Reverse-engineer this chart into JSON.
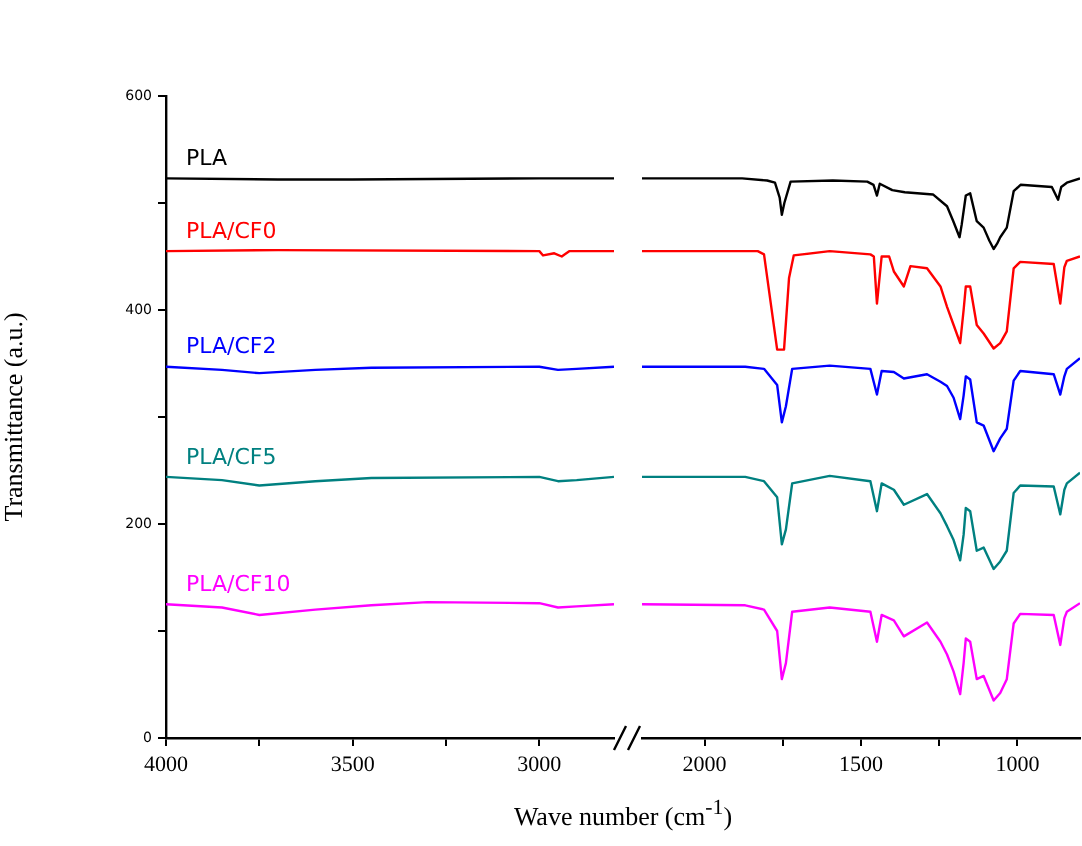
{
  "chart_data": [
    {
      "type": "line",
      "xlabel": "Wave number (cm$^{-1}$)",
      "ylabel": "Transmittance (a.u.)",
      "marker": "none",
      "xlim": [
        4000,
        2800
      ],
      "xticks": [
        4000,
        {
          "value": 3750,
          "label": null
        },
        3500,
        {
          "value": 3250,
          "label": null
        },
        3000
      ],
      "ylim": [
        0,
        600
      ],
      "yticks": [
        0,
        {
          "value": 100,
          "label": null
        },
        200,
        {
          "value": 300,
          "label": null
        },
        400,
        {
          "value": 500,
          "label": null
        },
        600
      ],
      "series": [
        {
          "name": "PLA",
          "color": "#000000",
          "x": [
            4000,
            3700,
            3500,
            3000,
            2800
          ],
          "values": [
            523,
            522,
            522,
            523,
            523
          ]
        },
        {
          "name": "PLA/CF0",
          "color": "#ff0000",
          "x": [
            4000,
            3700,
            3000,
            2990,
            2960,
            2940,
            2920,
            2800
          ],
          "values": [
            455,
            456,
            455,
            451,
            453,
            450,
            455,
            455
          ]
        },
        {
          "name": "PLA/CF2",
          "color": "#0000ff",
          "x": [
            4000,
            3850,
            3750,
            3600,
            3450,
            3000,
            2950,
            2900,
            2800
          ],
          "values": [
            347,
            344,
            341,
            344,
            346,
            347,
            344,
            345,
            347
          ]
        },
        {
          "name": "PLA/CF5",
          "color": "#008080",
          "x": [
            4000,
            3850,
            3750,
            3600,
            3450,
            3000,
            2950,
            2900,
            2800
          ],
          "values": [
            244,
            241,
            236,
            240,
            243,
            244,
            240,
            241,
            244
          ]
        },
        {
          "name": "PLA/CF10",
          "color": "#ff00ff",
          "x": [
            4000,
            3850,
            3750,
            3600,
            3450,
            3300,
            3000,
            2950,
            2900,
            2800
          ],
          "values": [
            125,
            122,
            115,
            120,
            124,
            127,
            126,
            122,
            123,
            125
          ]
        }
      ]
    },
    {
      "type": "line",
      "marker": "none",
      "tick_labels": "x",
      "xlim": [
        2200,
        800
      ],
      "xticks": [
        2000,
        {
          "value": 1750,
          "label": null
        },
        1500,
        {
          "value": 1250,
          "label": null
        },
        1000
      ],
      "ylim": [
        0,
        600
      ],
      "series": [
        {
          "color": "#000000",
          "x": [
            2200,
            1880,
            1800,
            1775,
            1760,
            1753,
            1745,
            1725,
            1590,
            1480,
            1460,
            1449,
            1440,
            1400,
            1360,
            1270,
            1225,
            1205,
            1185,
            1178,
            1165,
            1151,
            1130,
            1108,
            1090,
            1076,
            1065,
            1055,
            1034,
            1012,
            990,
            890,
            870,
            860,
            842,
            800
          ],
          "values": [
            523,
            523,
            521,
            519,
            505,
            489,
            500,
            520,
            521,
            520,
            517,
            507,
            518,
            512,
            510,
            508,
            497,
            483,
            468,
            480,
            507,
            509,
            483,
            477,
            465,
            457,
            462,
            468,
            477,
            511,
            517,
            515,
            503,
            515,
            519,
            523
          ]
        },
        {
          "color": "#ff0000",
          "x": [
            2200,
            1830,
            1810,
            1768,
            1746,
            1730,
            1715,
            1600,
            1470,
            1459,
            1449,
            1434,
            1410,
            1395,
            1363,
            1342,
            1289,
            1246,
            1225,
            1204,
            1183,
            1172,
            1165,
            1151,
            1130,
            1108,
            1076,
            1055,
            1034,
            1012,
            991,
            884,
            863,
            850,
            842,
            800
          ],
          "values": [
            455,
            455,
            452,
            363,
            363,
            430,
            451,
            455,
            452,
            450,
            406,
            450,
            450,
            436,
            422,
            441,
            439,
            422,
            403,
            386,
            369,
            400,
            422,
            422,
            386,
            378,
            364,
            369,
            380,
            439,
            445,
            443,
            406,
            440,
            446,
            450
          ]
        },
        {
          "color": "#0000ff",
          "x": [
            2200,
            1870,
            1810,
            1768,
            1753,
            1740,
            1720,
            1600,
            1470,
            1449,
            1434,
            1395,
            1363,
            1289,
            1246,
            1225,
            1204,
            1183,
            1172,
            1165,
            1151,
            1130,
            1108,
            1076,
            1055,
            1034,
            1012,
            991,
            884,
            863,
            850,
            842,
            800
          ],
          "values": [
            347,
            347,
            345,
            330,
            295,
            310,
            345,
            348,
            345,
            321,
            343,
            342,
            336,
            340,
            333,
            329,
            318,
            298,
            320,
            338,
            335,
            295,
            292,
            268,
            280,
            289,
            334,
            343,
            340,
            321,
            338,
            345,
            355
          ]
        },
        {
          "color": "#008080",
          "x": [
            2200,
            1870,
            1810,
            1768,
            1753,
            1740,
            1720,
            1600,
            1470,
            1449,
            1434,
            1395,
            1363,
            1289,
            1246,
            1225,
            1204,
            1183,
            1172,
            1165,
            1151,
            1130,
            1108,
            1076,
            1055,
            1034,
            1012,
            991,
            884,
            863,
            850,
            842,
            800
          ],
          "values": [
            244,
            244,
            240,
            225,
            181,
            195,
            238,
            245,
            240,
            212,
            238,
            232,
            218,
            228,
            210,
            198,
            185,
            166,
            190,
            215,
            212,
            175,
            178,
            158,
            165,
            175,
            229,
            236,
            235,
            209,
            232,
            238,
            248
          ]
        },
        {
          "color": "#ff00ff",
          "x": [
            2200,
            1870,
            1810,
            1768,
            1753,
            1740,
            1720,
            1600,
            1470,
            1449,
            1434,
            1395,
            1363,
            1289,
            1246,
            1225,
            1204,
            1183,
            1172,
            1165,
            1151,
            1130,
            1108,
            1076,
            1055,
            1034,
            1012,
            991,
            884,
            863,
            850,
            842,
            800
          ],
          "values": [
            125,
            124,
            120,
            100,
            55,
            70,
            118,
            122,
            118,
            90,
            115,
            110,
            95,
            108,
            90,
            78,
            62,
            41,
            70,
            93,
            90,
            55,
            58,
            35,
            42,
            55,
            107,
            116,
            115,
            87,
            112,
            118,
            126
          ]
        }
      ]
    }
  ]
}
